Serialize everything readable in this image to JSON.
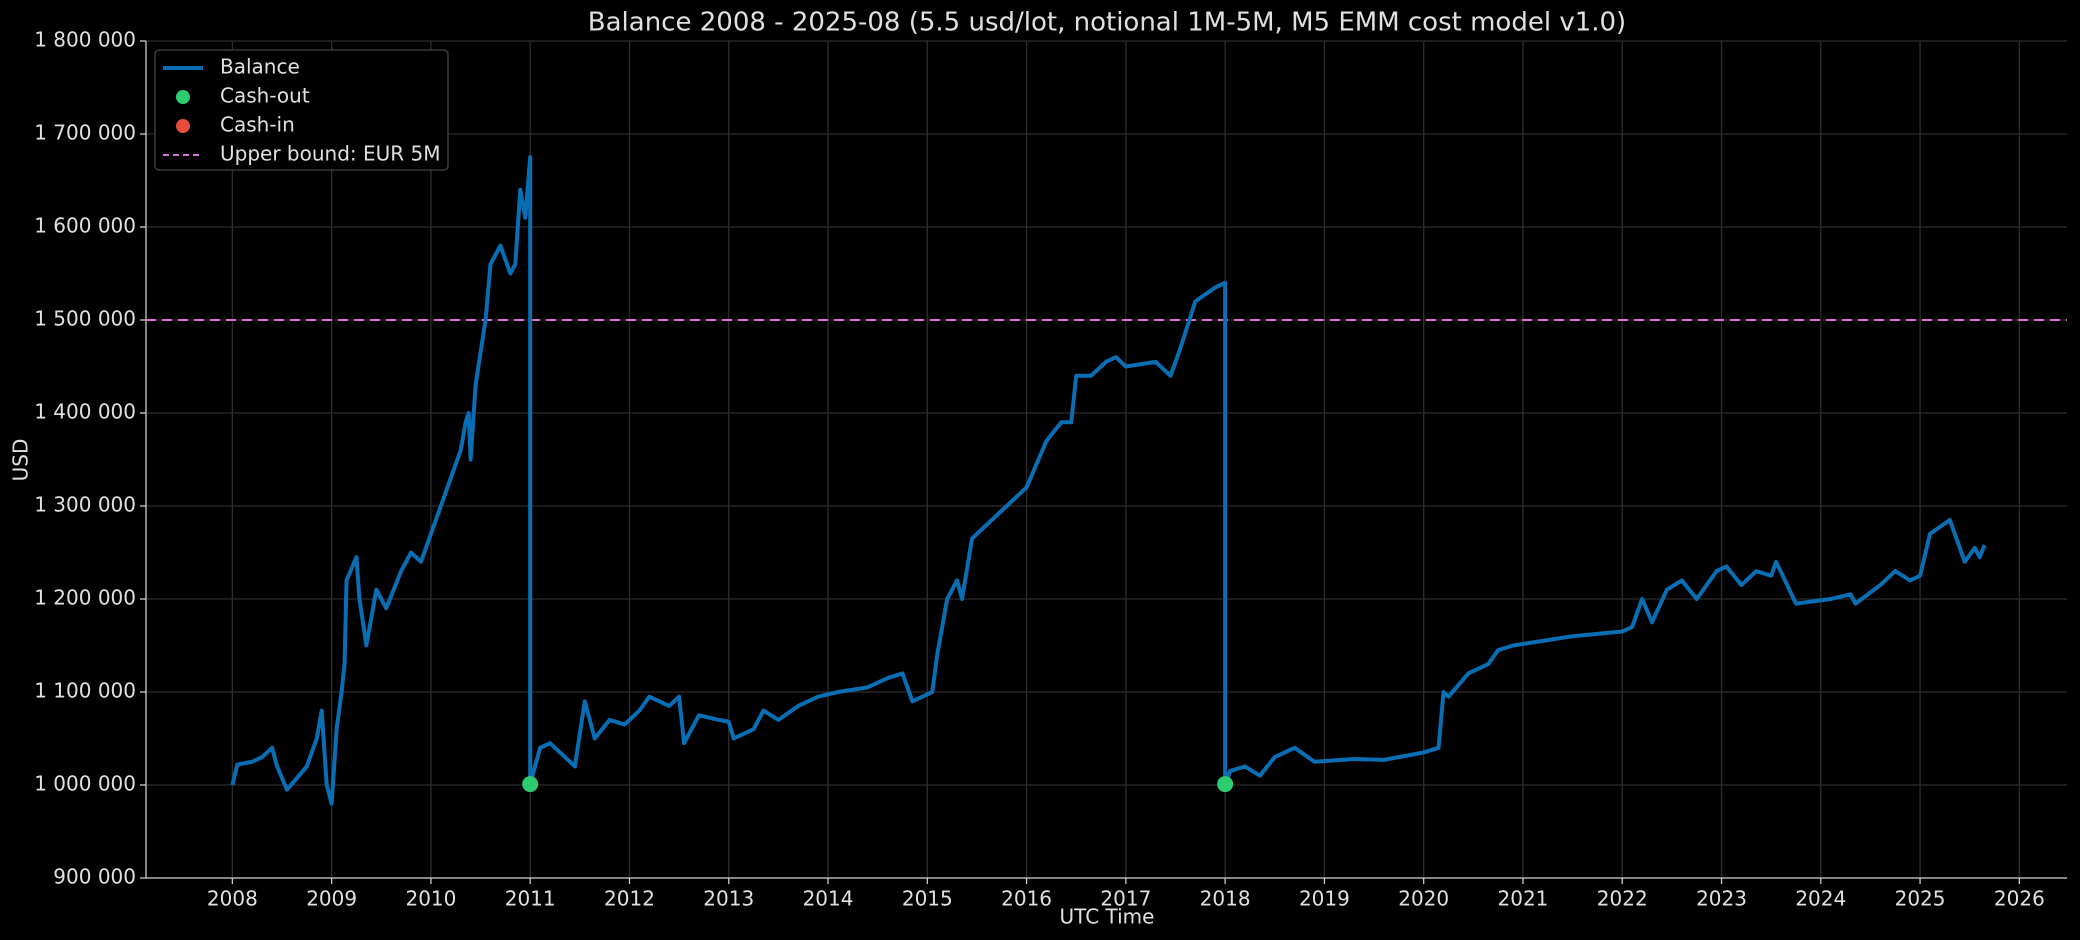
{
  "chart_data": {
    "type": "line",
    "title": "Balance 2008 - 2025-08 (5.5 usd/lot, notional 1M-5M, M5 EMM cost model v1.0)",
    "xlabel": "UTC Time",
    "ylabel": "USD",
    "xlim": [
      2007.13,
      2026.48
    ],
    "xticks": [
      2008,
      2009,
      2010,
      2011,
      2012,
      2013,
      2014,
      2015,
      2016,
      2017,
      2018,
      2019,
      2020,
      2021,
      2022,
      2023,
      2024,
      2025,
      2026
    ],
    "ylim": [
      900000,
      1800000
    ],
    "yticks": [
      {
        "value": 900000,
        "label": "900 000"
      },
      {
        "value": 1000000,
        "label": "1 000 000"
      },
      {
        "value": 1100000,
        "label": "1 100 000"
      },
      {
        "value": 1200000,
        "label": "1 200 000"
      },
      {
        "value": 1300000,
        "label": "1 300 000"
      },
      {
        "value": 1400000,
        "label": "1 400 000"
      },
      {
        "value": 1500000,
        "label": "1 500 000"
      },
      {
        "value": 1600000,
        "label": "1 600 000"
      },
      {
        "value": 1700000,
        "label": "1 700 000"
      },
      {
        "value": 1800000,
        "label": "1 800 000"
      }
    ],
    "grid": true,
    "legend": "upper left",
    "series": [
      {
        "name": "Balance",
        "kind": "line",
        "color": "#0a6eb4",
        "x": [
          2008.0,
          2008.05,
          2008.2,
          2008.3,
          2008.4,
          2008.45,
          2008.55,
          2008.75,
          2008.85,
          2008.9,
          2008.95,
          2009.0,
          2009.05,
          2009.1,
          2009.13,
          2009.15,
          2009.25,
          2009.28,
          2009.35,
          2009.45,
          2009.55,
          2009.7,
          2009.8,
          2009.9,
          2010.0,
          2010.1,
          2010.2,
          2010.3,
          2010.35,
          2010.38,
          2010.4,
          2010.45,
          2010.55,
          2010.6,
          2010.7,
          2010.8,
          2010.85,
          2010.9,
          2010.95,
          2011.0,
          2011.0,
          2011.1,
          2011.2,
          2011.35,
          2011.45,
          2011.55,
          2011.65,
          2011.8,
          2011.95,
          2012.1,
          2012.2,
          2012.4,
          2012.5,
          2012.55,
          2012.7,
          2012.9,
          2013.0,
          2013.05,
          2013.25,
          2013.35,
          2013.5,
          2013.7,
          2013.9,
          2014.1,
          2014.4,
          2014.6,
          2014.75,
          2014.85,
          2014.95,
          2015.05,
          2015.1,
          2015.2,
          2015.3,
          2015.35,
          2015.45,
          2015.55,
          2015.7,
          2015.9,
          2016.0,
          2016.1,
          2016.2,
          2016.35,
          2016.45,
          2016.5,
          2016.65,
          2016.8,
          2016.9,
          2017.0,
          2017.3,
          2017.45,
          2017.55,
          2017.7,
          2017.9,
          2018.0,
          2018.0,
          2018.05,
          2018.2,
          2018.35,
          2018.5,
          2018.7,
          2018.9,
          2019.3,
          2019.6,
          2019.85,
          2020.0,
          2020.15,
          2020.2,
          2020.25,
          2020.45,
          2020.65,
          2020.75,
          2020.9,
          2021.2,
          2021.5,
          2021.8,
          2022.0,
          2022.1,
          2022.2,
          2022.3,
          2022.45,
          2022.6,
          2022.75,
          2022.95,
          2023.05,
          2023.2,
          2023.35,
          2023.5,
          2023.55,
          2023.75,
          2024.1,
          2024.3,
          2024.35,
          2024.6,
          2024.75,
          2024.9,
          2025.0,
          2025.1,
          2025.3,
          2025.45,
          2025.55,
          2025.6,
          2025.65
        ],
        "values": [
          1000000,
          1022000,
          1025000,
          1030000,
          1040000,
          1020000,
          995000,
          1020000,
          1050000,
          1080000,
          1000000,
          980000,
          1060000,
          1100000,
          1130000,
          1220000,
          1245000,
          1200000,
          1150000,
          1210000,
          1190000,
          1230000,
          1250000,
          1240000,
          1270000,
          1300000,
          1330000,
          1360000,
          1390000,
          1400000,
          1350000,
          1430000,
          1500000,
          1560000,
          1580000,
          1550000,
          1560000,
          1640000,
          1610000,
          1675000,
          1001000,
          1040000,
          1045000,
          1030000,
          1020000,
          1090000,
          1050000,
          1070000,
          1065000,
          1080000,
          1095000,
          1085000,
          1095000,
          1045000,
          1075000,
          1070000,
          1068000,
          1050000,
          1060000,
          1080000,
          1070000,
          1085000,
          1095000,
          1100000,
          1105000,
          1115000,
          1120000,
          1090000,
          1095000,
          1100000,
          1140000,
          1200000,
          1220000,
          1200000,
          1265000,
          1275000,
          1290000,
          1310000,
          1320000,
          1345000,
          1370000,
          1390000,
          1390000,
          1440000,
          1440000,
          1455000,
          1460000,
          1450000,
          1455000,
          1440000,
          1470000,
          1520000,
          1535000,
          1540000,
          1000000,
          1015000,
          1020000,
          1010000,
          1030000,
          1040000,
          1025000,
          1028000,
          1027000,
          1032000,
          1035000,
          1040000,
          1100000,
          1095000,
          1120000,
          1130000,
          1145000,
          1150000,
          1155000,
          1160000,
          1163000,
          1165000,
          1170000,
          1200000,
          1175000,
          1210000,
          1220000,
          1200000,
          1230000,
          1235000,
          1215000,
          1230000,
          1225000,
          1240000,
          1195000,
          1200000,
          1205000,
          1195000,
          1215000,
          1230000,
          1220000,
          1225000,
          1270000,
          1285000,
          1240000,
          1255000,
          1245000,
          1258000
        ]
      },
      {
        "name": "Cash-out",
        "kind": "marker",
        "color": "#2ecc71",
        "x": [
          2011.0,
          2018.0
        ],
        "values": [
          1001000,
          1001000
        ]
      },
      {
        "name": "Cash-in",
        "kind": "marker",
        "color": "#e74c3c",
        "x": [],
        "values": []
      }
    ],
    "hline": {
      "name": "Upper bound: EUR 5M",
      "value": 1500000,
      "color": "#da70d6"
    }
  }
}
